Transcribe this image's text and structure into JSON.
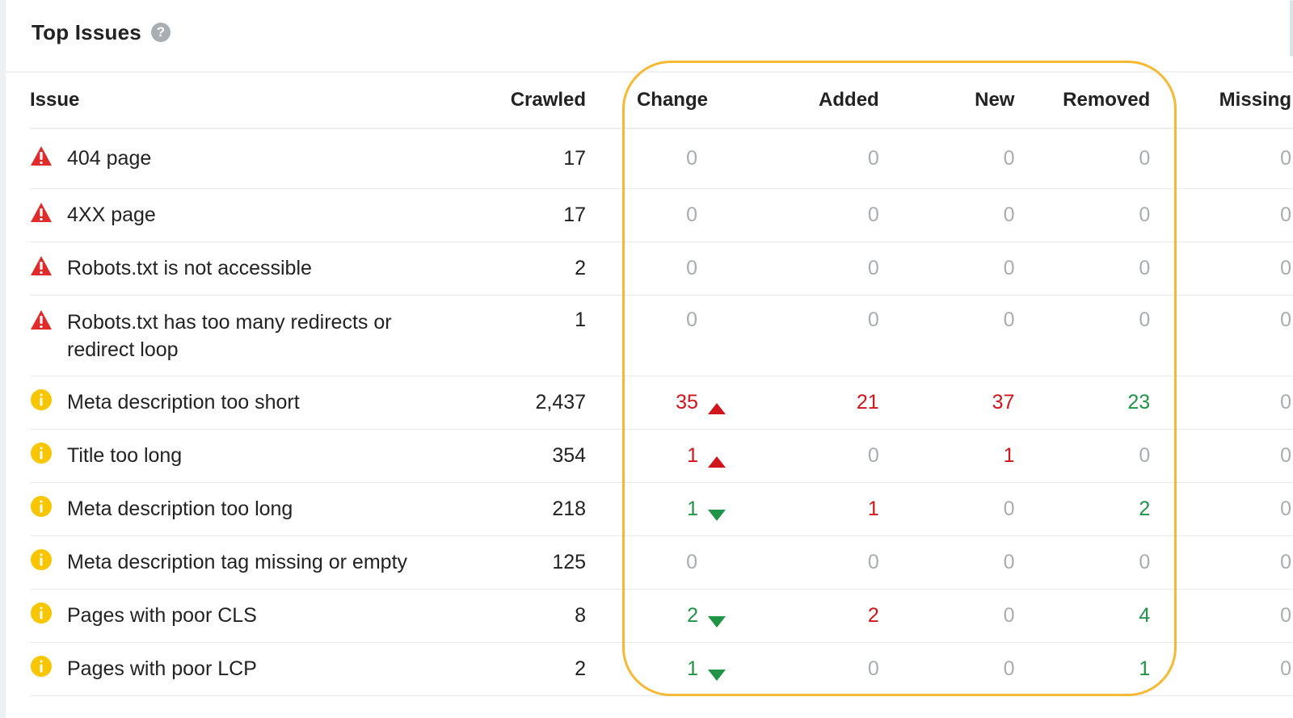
{
  "panel": {
    "title": "Top Issues",
    "help_glyph": "?"
  },
  "columns": {
    "issue": "Issue",
    "crawled": "Crawled",
    "change": "Change",
    "added": "Added",
    "new": "New",
    "removed": "Removed",
    "missing": "Missing"
  },
  "colors": {
    "error": "#e02b2b",
    "warning": "#f7c600",
    "increase": "#d0151b",
    "decrease": "#1f9447",
    "neutral": "#a9acb0",
    "highlight": "#f5b934"
  },
  "rows": [
    {
      "severity": "error",
      "issue": "404 page",
      "crawled": "17",
      "change": "0",
      "change_dir": "none",
      "added": "0",
      "new": "0",
      "removed": "0",
      "missing": "0"
    },
    {
      "severity": "error",
      "issue": "4XX page",
      "crawled": "17",
      "change": "0",
      "change_dir": "none",
      "added": "0",
      "new": "0",
      "removed": "0",
      "missing": "0"
    },
    {
      "severity": "error",
      "issue": "Robots.txt is not accessible",
      "crawled": "2",
      "change": "0",
      "change_dir": "none",
      "added": "0",
      "new": "0",
      "removed": "0",
      "missing": "0"
    },
    {
      "severity": "error",
      "issue": "Robots.txt has too many redirects or redirect loop",
      "crawled": "1",
      "change": "0",
      "change_dir": "none",
      "added": "0",
      "new": "0",
      "removed": "0",
      "missing": "0"
    },
    {
      "severity": "warning",
      "issue": "Meta description too short",
      "crawled": "2,437",
      "change": "35",
      "change_dir": "up",
      "added": "21",
      "new": "37",
      "removed": "23",
      "missing": "0"
    },
    {
      "severity": "warning",
      "issue": "Title too long",
      "crawled": "354",
      "change": "1",
      "change_dir": "up",
      "added": "0",
      "new": "1",
      "removed": "0",
      "missing": "0"
    },
    {
      "severity": "warning",
      "issue": "Meta description too long",
      "crawled": "218",
      "change": "1",
      "change_dir": "down",
      "added": "1",
      "new": "0",
      "removed": "2",
      "missing": "0"
    },
    {
      "severity": "warning",
      "issue": "Meta description tag missing or empty",
      "crawled": "125",
      "change": "0",
      "change_dir": "none",
      "added": "0",
      "new": "0",
      "removed": "0",
      "missing": "0"
    },
    {
      "severity": "warning",
      "issue": "Pages with poor CLS",
      "crawled": "8",
      "change": "2",
      "change_dir": "down",
      "added": "2",
      "new": "0",
      "removed": "4",
      "missing": "0"
    },
    {
      "severity": "warning",
      "issue": "Pages with poor LCP",
      "crawled": "2",
      "change": "1",
      "change_dir": "down",
      "added": "0",
      "new": "0",
      "removed": "1",
      "missing": "0"
    }
  ]
}
